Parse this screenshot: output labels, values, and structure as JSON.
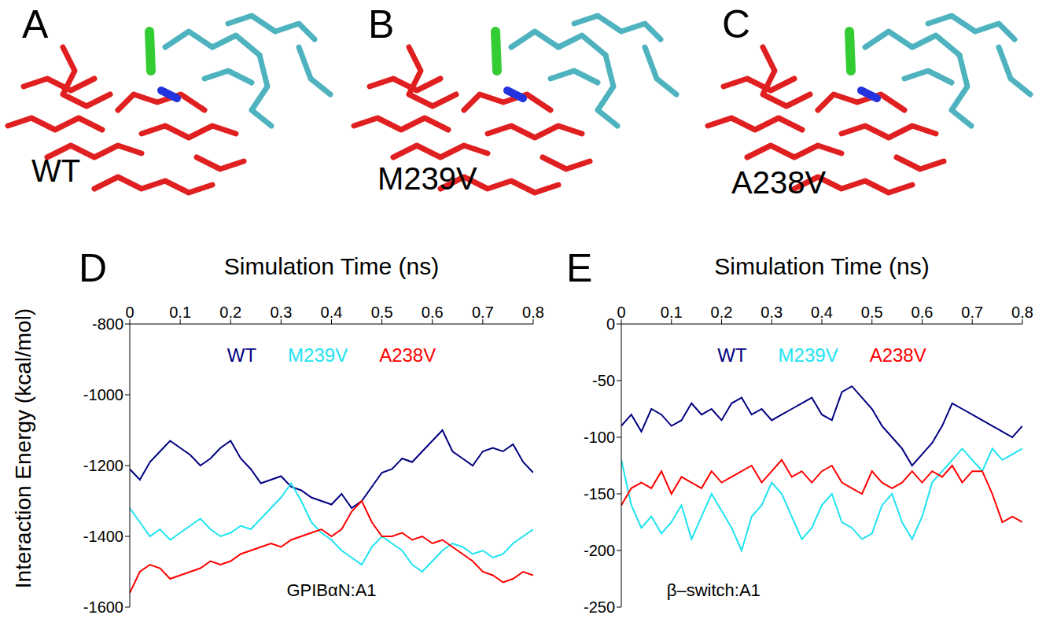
{
  "image_panels": [
    {
      "letter": "A",
      "label": "WT"
    },
    {
      "letter": "B",
      "label": "M239V"
    },
    {
      "letter": "C",
      "label": "A238V"
    }
  ],
  "chart_data": [
    {
      "panel": "D",
      "type": "line",
      "xlabel": "Simulation Time (ns)",
      "ylabel": "Interaction Energy (kcal/mol)",
      "annotation": "GPIBαN:A1",
      "legend": "top",
      "x": [
        0,
        0.02,
        0.04,
        0.06,
        0.08,
        0.1,
        0.12,
        0.14,
        0.16,
        0.18,
        0.2,
        0.22,
        0.24,
        0.26,
        0.28,
        0.3,
        0.32,
        0.34,
        0.36,
        0.38,
        0.4,
        0.42,
        0.44,
        0.46,
        0.48,
        0.5,
        0.52,
        0.54,
        0.56,
        0.58,
        0.6,
        0.62,
        0.64,
        0.66,
        0.68,
        0.7,
        0.72,
        0.74,
        0.76,
        0.78,
        0.8
      ],
      "series": [
        {
          "name": "WT",
          "color": "#000080",
          "values": [
            -1210,
            -1240,
            -1190,
            -1160,
            -1130,
            -1150,
            -1170,
            -1200,
            -1180,
            -1150,
            -1130,
            -1180,
            -1210,
            -1250,
            -1240,
            -1230,
            -1260,
            -1270,
            -1290,
            -1300,
            -1310,
            -1280,
            -1320,
            -1300,
            -1260,
            -1220,
            -1210,
            -1180,
            -1190,
            -1160,
            -1130,
            -1100,
            -1160,
            -1180,
            -1200,
            -1160,
            -1150,
            -1160,
            -1140,
            -1190,
            -1220
          ]
        },
        {
          "name": "M239V",
          "color": "#1ee3f0",
          "values": [
            -1320,
            -1360,
            -1400,
            -1380,
            -1410,
            -1390,
            -1370,
            -1350,
            -1380,
            -1400,
            -1390,
            -1370,
            -1380,
            -1350,
            -1320,
            -1290,
            -1250,
            -1300,
            -1360,
            -1390,
            -1410,
            -1440,
            -1460,
            -1480,
            -1430,
            -1400,
            -1420,
            -1440,
            -1480,
            -1500,
            -1470,
            -1440,
            -1420,
            -1430,
            -1450,
            -1440,
            -1460,
            -1450,
            -1420,
            -1400,
            -1380
          ]
        },
        {
          "name": "A238V",
          "color": "#ff0000",
          "values": [
            -1560,
            -1500,
            -1480,
            -1490,
            -1520,
            -1510,
            -1500,
            -1490,
            -1470,
            -1480,
            -1470,
            -1450,
            -1440,
            -1430,
            -1420,
            -1430,
            -1410,
            -1400,
            -1390,
            -1380,
            -1400,
            -1380,
            -1330,
            -1300,
            -1360,
            -1400,
            -1400,
            -1390,
            -1410,
            -1400,
            -1420,
            -1410,
            -1430,
            -1450,
            -1470,
            -1500,
            -1510,
            -1530,
            -1520,
            -1500,
            -1510
          ]
        }
      ],
      "xlim": [
        0,
        0.8
      ],
      "xticks": [
        0,
        0.1,
        0.2,
        0.3,
        0.4,
        0.5,
        0.6,
        0.7,
        0.8
      ],
      "ylim": [
        -1600,
        -800
      ],
      "yticks": [
        -1600,
        -1400,
        -1200,
        -1000,
        -800
      ]
    },
    {
      "panel": "E",
      "type": "line",
      "xlabel": "Simulation Time (ns)",
      "annotation": "β–switch:A1",
      "legend": "top",
      "x": [
        0,
        0.02,
        0.04,
        0.06,
        0.08,
        0.1,
        0.12,
        0.14,
        0.16,
        0.18,
        0.2,
        0.22,
        0.24,
        0.26,
        0.28,
        0.3,
        0.32,
        0.34,
        0.36,
        0.38,
        0.4,
        0.42,
        0.44,
        0.46,
        0.48,
        0.5,
        0.52,
        0.54,
        0.56,
        0.58,
        0.6,
        0.62,
        0.64,
        0.66,
        0.68,
        0.7,
        0.72,
        0.74,
        0.76,
        0.78,
        0.8
      ],
      "series": [
        {
          "name": "WT",
          "color": "#000080",
          "values": [
            -90,
            -80,
            -95,
            -75,
            -80,
            -90,
            -85,
            -70,
            -80,
            -75,
            -85,
            -70,
            -65,
            -80,
            -75,
            -85,
            -80,
            -75,
            -70,
            -65,
            -80,
            -85,
            -60,
            -55,
            -65,
            -75,
            -90,
            -100,
            -110,
            -125,
            -115,
            -105,
            -90,
            -70,
            -75,
            -80,
            -85,
            -90,
            -95,
            -100,
            -90
          ]
        },
        {
          "name": "M239V",
          "color": "#1ee3f0",
          "values": [
            -120,
            -160,
            -180,
            -170,
            -185,
            -175,
            -160,
            -190,
            -170,
            -150,
            -165,
            -180,
            -200,
            -170,
            -160,
            -140,
            -150,
            -170,
            -190,
            -180,
            -160,
            -150,
            -175,
            -180,
            -190,
            -185,
            -160,
            -150,
            -175,
            -190,
            -170,
            -140,
            -130,
            -120,
            -110,
            -120,
            -130,
            -110,
            -120,
            -115,
            -110
          ]
        },
        {
          "name": "A238V",
          "color": "#ff0000",
          "values": [
            -160,
            -145,
            -140,
            -145,
            -130,
            -150,
            -135,
            -140,
            -145,
            -130,
            -140,
            -135,
            -130,
            -125,
            -140,
            -130,
            -120,
            -135,
            -130,
            -140,
            -130,
            -125,
            -140,
            -145,
            -150,
            -130,
            -140,
            -145,
            -140,
            -130,
            -140,
            -130,
            -135,
            -125,
            -140,
            -130,
            -130,
            -150,
            -175,
            -170,
            -175
          ]
        }
      ],
      "xlim": [
        0,
        0.8
      ],
      "xticks": [
        0,
        0.1,
        0.2,
        0.3,
        0.4,
        0.5,
        0.6,
        0.7,
        0.8
      ],
      "ylim": [
        -250,
        0
      ],
      "yticks": [
        -250,
        -200,
        -150,
        -100,
        -50,
        0
      ]
    }
  ]
}
